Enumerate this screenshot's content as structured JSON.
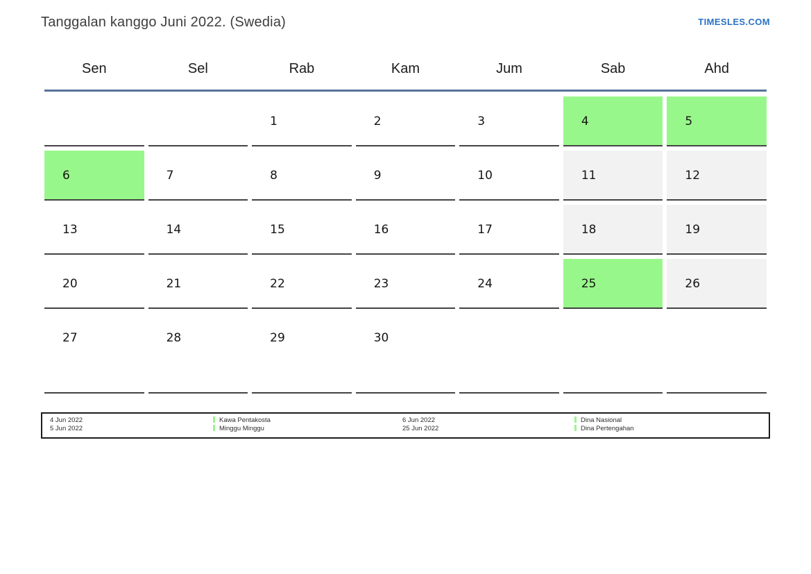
{
  "header": {
    "title": "Tanggalan kanggo Juni 2022. (Swedia)",
    "site_link": "TIMESLES.COM"
  },
  "calendar": {
    "weekdays": [
      "Sen",
      "Sel",
      "Rab",
      "Kam",
      "Jum",
      "Sab",
      "Ahd"
    ],
    "weeks": [
      [
        {
          "day": "",
          "type": "empty"
        },
        {
          "day": "",
          "type": "empty"
        },
        {
          "day": "1",
          "type": "normal"
        },
        {
          "day": "2",
          "type": "normal"
        },
        {
          "day": "3",
          "type": "normal"
        },
        {
          "day": "4",
          "type": "holiday"
        },
        {
          "day": "5",
          "type": "holiday"
        }
      ],
      [
        {
          "day": "6",
          "type": "holiday"
        },
        {
          "day": "7",
          "type": "normal"
        },
        {
          "day": "8",
          "type": "normal"
        },
        {
          "day": "9",
          "type": "normal"
        },
        {
          "day": "10",
          "type": "normal"
        },
        {
          "day": "11",
          "type": "weekend"
        },
        {
          "day": "12",
          "type": "weekend"
        }
      ],
      [
        {
          "day": "13",
          "type": "normal"
        },
        {
          "day": "14",
          "type": "normal"
        },
        {
          "day": "15",
          "type": "normal"
        },
        {
          "day": "16",
          "type": "normal"
        },
        {
          "day": "17",
          "type": "normal"
        },
        {
          "day": "18",
          "type": "weekend"
        },
        {
          "day": "19",
          "type": "weekend"
        }
      ],
      [
        {
          "day": "20",
          "type": "normal"
        },
        {
          "day": "21",
          "type": "normal"
        },
        {
          "day": "22",
          "type": "normal"
        },
        {
          "day": "23",
          "type": "normal"
        },
        {
          "day": "24",
          "type": "normal"
        },
        {
          "day": "25",
          "type": "holiday"
        },
        {
          "day": "26",
          "type": "weekend"
        }
      ],
      [
        {
          "day": "27",
          "type": "normal"
        },
        {
          "day": "28",
          "type": "normal"
        },
        {
          "day": "29",
          "type": "normal"
        },
        {
          "day": "30",
          "type": "normal"
        },
        {
          "day": "",
          "type": "empty"
        },
        {
          "day": "",
          "type": "empty"
        },
        {
          "day": "",
          "type": "empty"
        }
      ]
    ]
  },
  "legend": {
    "groups": [
      {
        "dates": [
          "4 Jun 2022",
          "5 Jun 2022"
        ],
        "events": [
          "Kawa Pentakosta",
          "Minggu Minggu"
        ]
      },
      {
        "dates": [
          "6 Jun 2022",
          "25 Jun 2022"
        ],
        "events": [
          "Dina Nasional",
          "Dina Pertengahan"
        ]
      }
    ]
  },
  "colors": {
    "holiday_green": "#98f78a",
    "weekend_gray": "#f2f2f2",
    "rule_blue": "#567399",
    "link_blue": "#2b72c4"
  }
}
